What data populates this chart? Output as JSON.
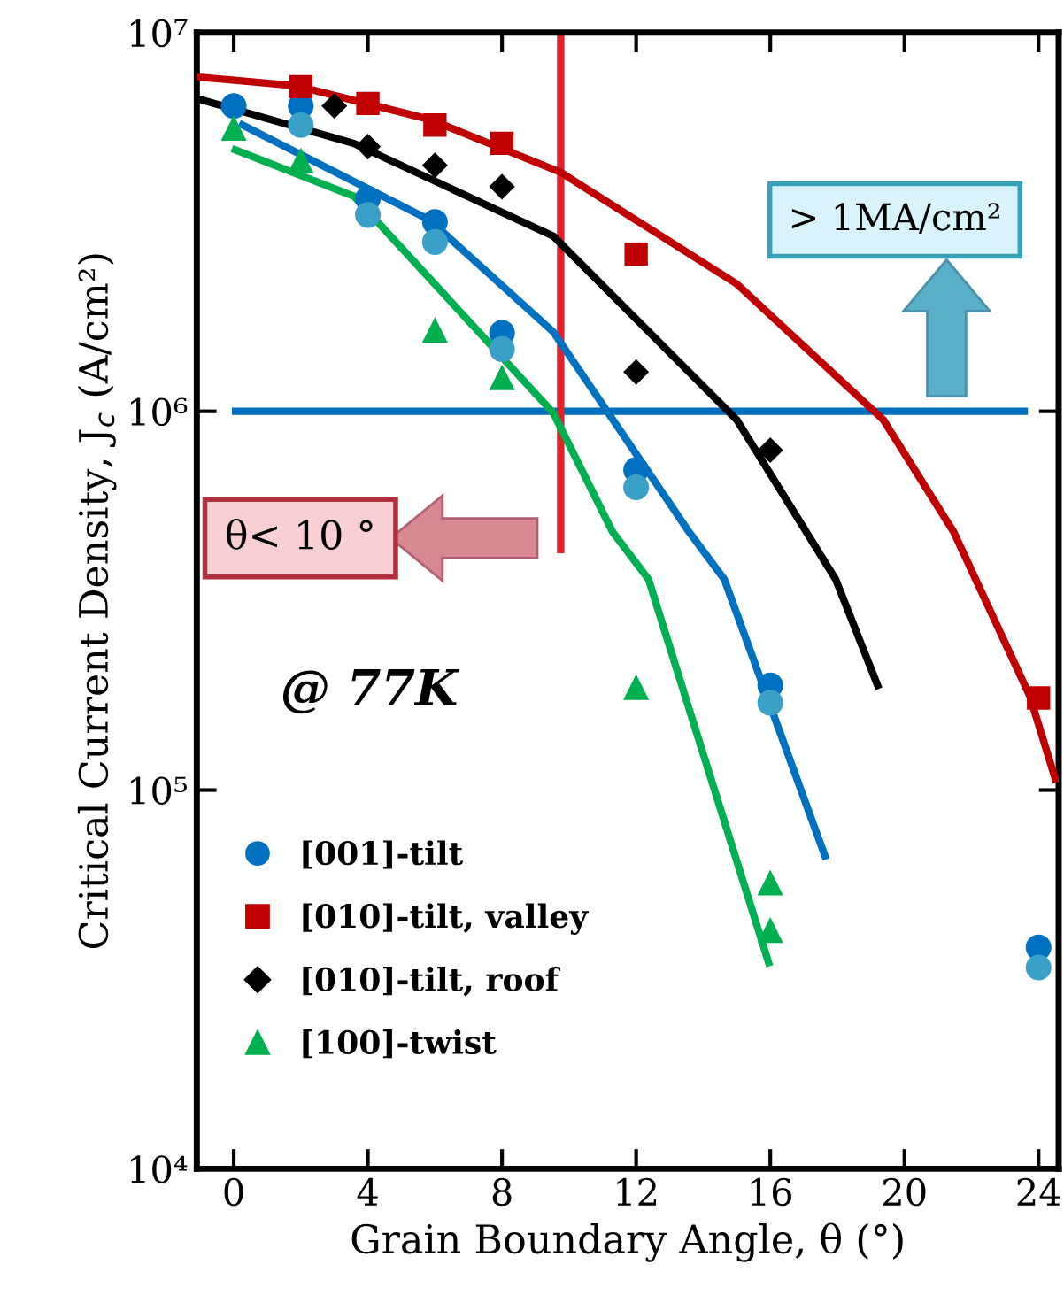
{
  "chart_data": {
    "type": "scatter",
    "xlabel": "Grain Boundary Angle, θ (°)",
    "ylabel": "Critical Current Density, J$_{c}$ (A/cm²)",
    "xlim": [
      -1.1,
      24.6
    ],
    "xticks": [
      0,
      4,
      8,
      12,
      16,
      20,
      24
    ],
    "ylim": [
      10000,
      10000000
    ],
    "log": "y",
    "yticks": [
      {
        "value": 10000,
        "label": "10⁴"
      },
      {
        "value": 100000,
        "label": "10⁵"
      },
      {
        "value": 1000000,
        "label": "10⁶"
      },
      {
        "value": 10000000,
        "label": "10⁷"
      }
    ],
    "grid": false,
    "legend": "bottom left",
    "series": [
      {
        "name": "[001]-tilt",
        "color": "#0070c0",
        "marker": "circle",
        "x": [
          0,
          2,
          4,
          6,
          8,
          12,
          16,
          24
        ],
        "values": [
          6400000,
          6400000,
          3640000,
          3160000,
          1610000,
          700000,
          189000,
          38400
        ]
      },
      {
        "name": "[010]-tilt, valley",
        "color": "#c00000",
        "marker": "square",
        "x": [
          2,
          4,
          6,
          8,
          12,
          24
        ],
        "values": [
          7200000,
          6500000,
          5700000,
          5100000,
          2600000,
          175000
        ]
      },
      {
        "name": "[010]-tilt, roof",
        "color": "#000000",
        "marker": "diamond",
        "x": [
          3,
          4,
          6,
          8,
          12,
          16
        ],
        "values": [
          6400000,
          5000000,
          4460000,
          3920000,
          1270000,
          790000
        ]
      },
      {
        "name": "[100]-twist",
        "color": "#00b050",
        "marker": "triangle",
        "x": [
          0,
          2,
          6,
          8,
          12,
          16,
          16
        ],
        "values": [
          5600000,
          4600000,
          1640000,
          1230000,
          187000,
          57000,
          42700
        ]
      },
      {
        "color": "#3aa0c8",
        "marker": "circle",
        "x": [
          2,
          4,
          6,
          8,
          12,
          16,
          24
        ],
        "values": [
          5700000,
          3300000,
          2800000,
          1460000,
          630000,
          170000,
          34000
        ]
      },
      {
        "type": "line",
        "color": "#c00000",
        "x": [
          -1.1,
          1.84,
          5.84,
          9.74,
          15.0,
          19.37,
          21.47,
          23.74,
          24.5
        ],
        "values": [
          7640000,
          7240000,
          5900000,
          4280000,
          2170000,
          950000,
          480000,
          177000,
          107000
        ]
      },
      {
        "type": "line",
        "color": "#000000",
        "x": [
          -1.1,
          3.58,
          9.53,
          15.0,
          17.95,
          19.2
        ],
        "values": [
          6700000,
          5100000,
          2900000,
          950000,
          360000,
          189000
        ]
      },
      {
        "type": "line",
        "color": "#0070c0",
        "x": [
          0.26,
          5.84,
          9.53,
          13.58,
          14.63,
          17.63
        ],
        "values": [
          5700000,
          3200000,
          1620000,
          480000,
          360000,
          67000
        ]
      },
      {
        "type": "line",
        "color": "#00b050",
        "x": [
          0.05,
          3.58,
          9.53,
          11.3,
          12.37,
          15.95
        ],
        "values": [
          4900000,
          3700000,
          990000,
          480000,
          360000,
          35000
        ]
      }
    ],
    "ref_lines": [
      {
        "axis": "y",
        "value": 1000000,
        "color": "#0070c0"
      },
      {
        "axis": "x",
        "value": 9.75,
        "color": "#e0202a"
      }
    ],
    "annotations": [
      "> 1MA/cm²",
      "θ< 10 °",
      "@ 77K"
    ]
  }
}
